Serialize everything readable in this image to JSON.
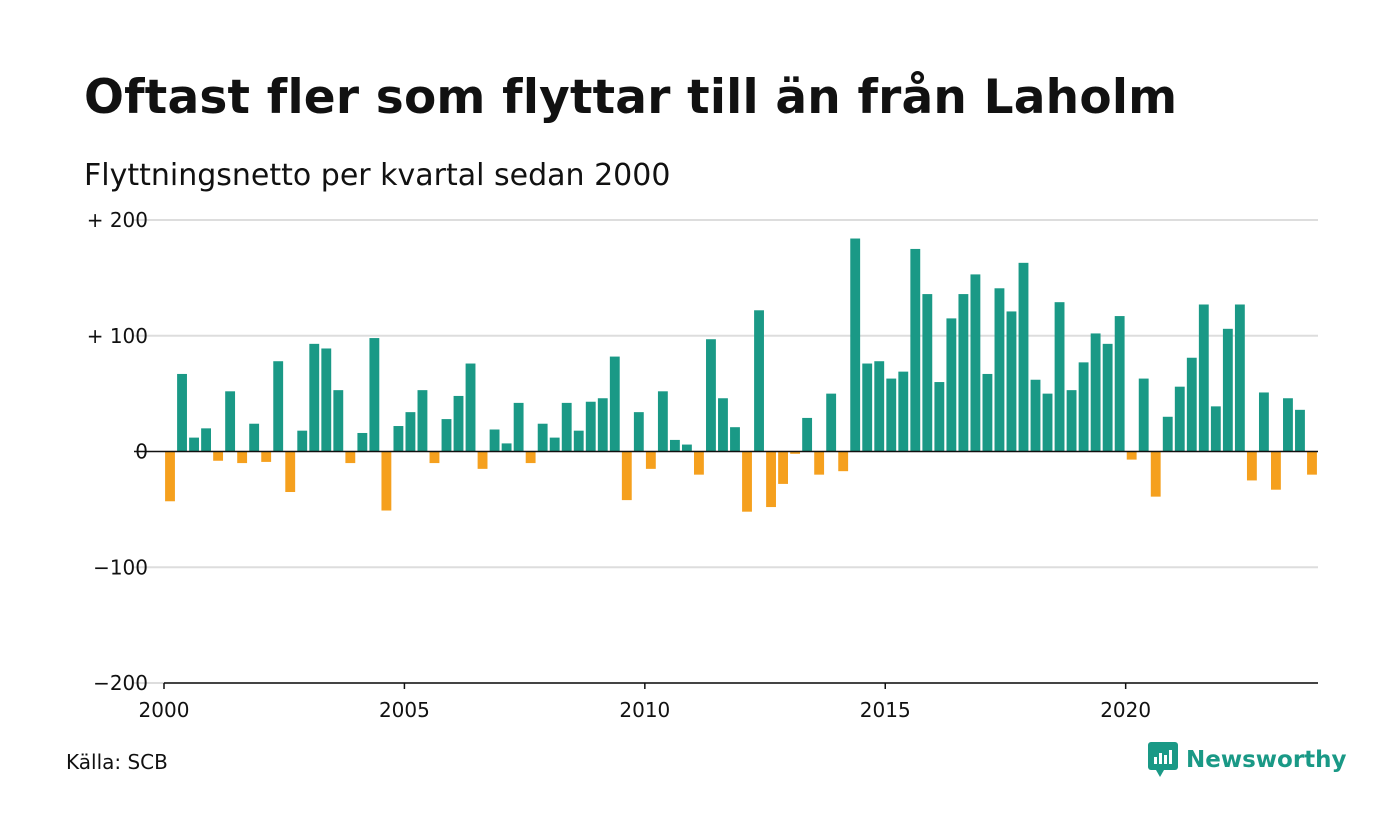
{
  "title": "Oftast fler som flyttar till än från Laholm",
  "subtitle": "Flyttningsnetto per kvartal sedan 2000",
  "source": "Källa: SCB",
  "logo": {
    "name": "Newsworthy",
    "icon": "newsworthy-logo-icon"
  },
  "colors": {
    "positive": "#1a9986",
    "negative": "#f5a01e",
    "grid": "#dddddd",
    "axis": "#111111"
  },
  "chart_data": {
    "type": "bar",
    "title": "Oftast fler som flyttar till än från Laholm",
    "subtitle": "Flyttningsnetto per kvartal sedan 2000",
    "xlabel": "",
    "ylabel": "",
    "x_start": 2000,
    "periods_per_year": 4,
    "xlim": [
      2000,
      2024
    ],
    "x_ticks": [
      2000,
      2005,
      2010,
      2015,
      2020
    ],
    "x_tick_labels": [
      "2000",
      "2005",
      "2010",
      "2015",
      "2020"
    ],
    "ylim": [
      -200,
      200
    ],
    "y_ticks": [
      200,
      100,
      0,
      -100,
      -200
    ],
    "y_tick_labels": [
      "+ 200",
      "+ 100",
      "0",
      "−100",
      "−200"
    ],
    "grid": true,
    "legend": "none",
    "values": [
      -43,
      67,
      12,
      20,
      -8,
      52,
      -10,
      24,
      -9,
      78,
      -35,
      18,
      93,
      89,
      53,
      -10,
      16,
      98,
      -51,
      22,
      34,
      53,
      -10,
      28,
      48,
      76,
      -15,
      19,
      7,
      42,
      -10,
      24,
      12,
      42,
      18,
      43,
      46,
      82,
      -42,
      34,
      -15,
      52,
      10,
      6,
      -20,
      97,
      46,
      21,
      -52,
      122,
      -48,
      -28,
      -2,
      29,
      -20,
      50,
      -17,
      184,
      76,
      78,
      63,
      69,
      175,
      136,
      60,
      115,
      136,
      153,
      67,
      141,
      121,
      163,
      62,
      50,
      129,
      53,
      77,
      102,
      93,
      117,
      -7,
      63,
      -39,
      30,
      56,
      81,
      127,
      39,
      106,
      127,
      -25,
      51,
      -33,
      46,
      36,
      -20
    ]
  }
}
